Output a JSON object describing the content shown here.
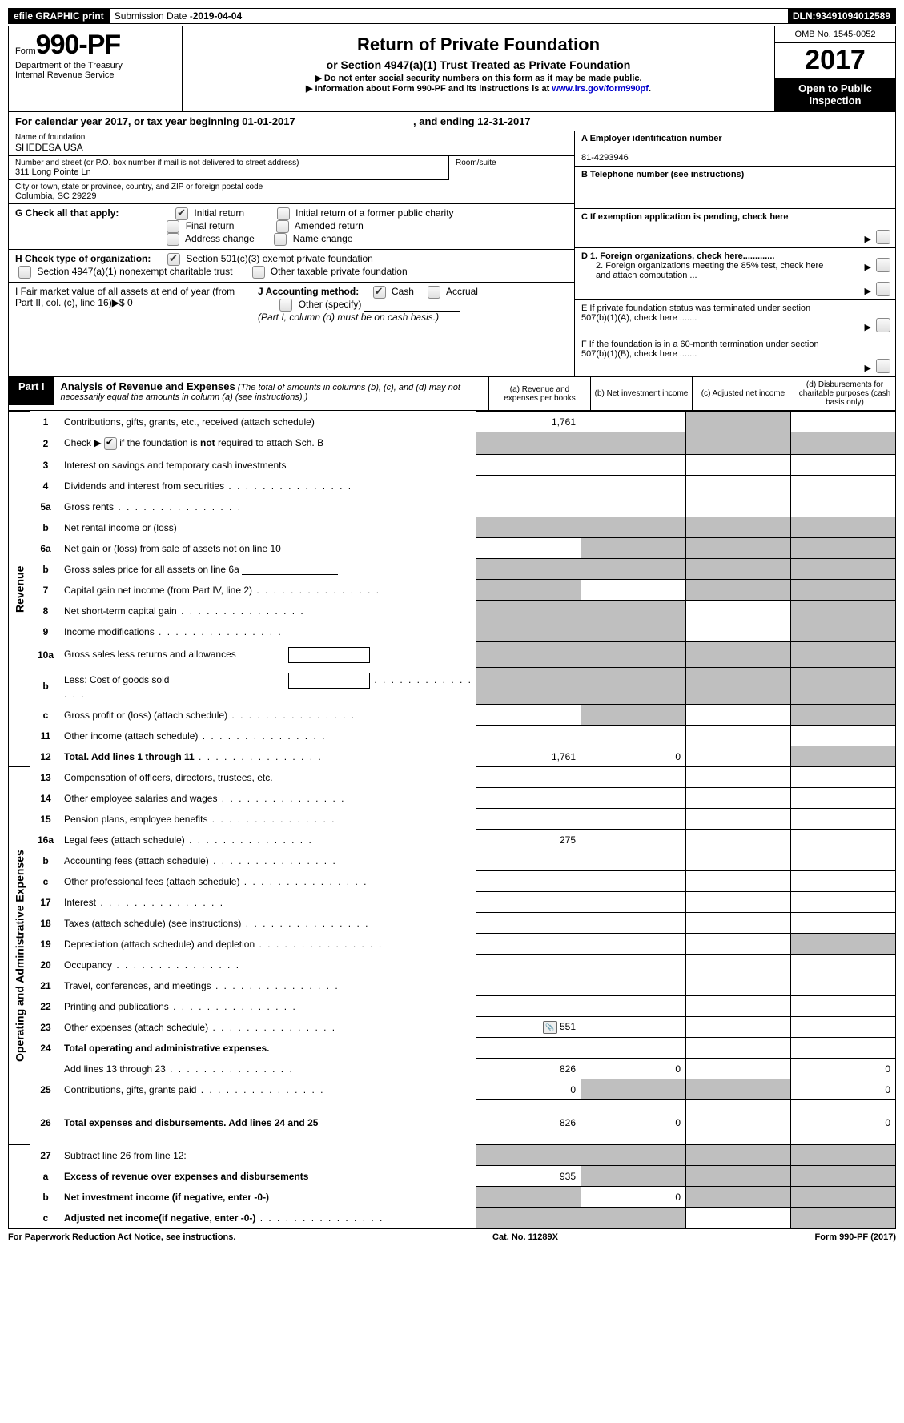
{
  "topbar": {
    "efile": "efile GRAPHIC print",
    "submission_label": "Submission Date - ",
    "submission_date": "2019-04-04",
    "dln_label": "DLN: ",
    "dln": "93491094012589"
  },
  "header": {
    "form_prefix": "Form",
    "form_number": "990-PF",
    "dept1": "Department of the Treasury",
    "dept2": "Internal Revenue Service",
    "title": "Return of Private Foundation",
    "subtitle": "or Section 4947(a)(1) Trust Treated as Private Foundation",
    "note1": "▶ Do not enter social security numbers on this form as it may be made public.",
    "note2_pre": "▶ Information about Form 990-PF and its instructions is at ",
    "note2_link": "www.irs.gov/form990pf",
    "omb": "OMB No. 1545-0052",
    "year": "2017",
    "open": "Open to Public Inspection"
  },
  "calendar": {
    "text_pre": "For calendar year 2017, or tax year beginning ",
    "begin": "01-01-2017",
    "mid": " , and ending ",
    "end": "12-31-2017"
  },
  "entity": {
    "name_lbl": "Name of foundation",
    "name": "SHEDESA USA",
    "addr_lbl": "Number and street (or P.O. box number if mail is not delivered to street address)",
    "addr": "311 Long Pointe Ln",
    "room_lbl": "Room/suite",
    "city_lbl": "City or town, state or province, country, and ZIP or foreign postal code",
    "city": "Columbia, SC  29229"
  },
  "sideA": {
    "lbl": "A Employer identification number",
    "val": "81-4293946"
  },
  "sideB": {
    "lbl": "B Telephone number (see instructions)"
  },
  "sideC": "C  If exemption application is pending, check here",
  "sideD1": "D 1. Foreign organizations, check here.............",
  "sideD2": "2. Foreign organizations meeting the 85% test, check here and attach computation ...",
  "sideE": "E  If private foundation status was terminated under section 507(b)(1)(A), check here .......",
  "sideF": "F  If the foundation is in a 60-month termination under section 507(b)(1)(B), check here .......",
  "checkG": {
    "lbl": "G Check all that apply:",
    "opts": [
      "Initial return",
      "Initial return of a former public charity",
      "Final return",
      "Amended return",
      "Address change",
      "Name change"
    ]
  },
  "checkH": {
    "lbl": "H Check type of organization:",
    "opt1": "Section 501(c)(3) exempt private foundation",
    "opt2": "Section 4947(a)(1) nonexempt charitable trust",
    "opt3": "Other taxable private foundation"
  },
  "rowI": {
    "lbl": "I Fair market value of all assets at end of year (from Part II, col. (c), line 16)▶$",
    "val": "  0"
  },
  "rowJ": {
    "lbl": "J Accounting method:",
    "cash": "Cash",
    "accrual": "Accrual",
    "other": "Other (specify)",
    "note": "(Part I, column (d) must be on cash basis.)"
  },
  "part1": {
    "label": "Part I",
    "title": "Analysis of Revenue and Expenses",
    "note": " (The total of amounts in columns (b), (c), and (d) may not necessarily equal the amounts in column (a) (see instructions).)",
    "cols": {
      "a": "(a)    Revenue and expenses per books",
      "b": "(b)    Net investment income",
      "c": "(c)    Adjusted net income",
      "d": "(d)    Disbursements for charitable purposes (cash basis only)"
    }
  },
  "side_labels": {
    "rev": "Revenue",
    "exp": "Operating and Administrative Expenses"
  },
  "rows": [
    {
      "n": "1",
      "d": "Contributions, gifts, grants, etc., received (attach schedule)",
      "a": "1,761",
      "shade": [
        "c"
      ]
    },
    {
      "n": "2",
      "d": "Check ▶ ☑ if the foundation is not required to attach Sch. B",
      "shade": [
        "a",
        "b",
        "c",
        "d"
      ],
      "bold_check": true,
      "allshade": true
    },
    {
      "n": "3",
      "d": "Interest on savings and temporary cash investments"
    },
    {
      "n": "4",
      "d": "Dividends and interest from securities",
      "dots": true
    },
    {
      "n": "5a",
      "d": "Gross rents",
      "dots": true
    },
    {
      "n": "b",
      "d": "Net rental income or (loss)",
      "shade": [
        "a",
        "b",
        "c",
        "d"
      ],
      "underline": true,
      "allshade": true
    },
    {
      "n": "6a",
      "d": "Net gain or (loss) from sale of assets not on line 10",
      "shade": [
        "b",
        "c",
        "d"
      ]
    },
    {
      "n": "b",
      "d": "Gross sales price for all assets on line 6a",
      "shade": [
        "a",
        "b",
        "c",
        "d"
      ],
      "underline": true,
      "allshade": true
    },
    {
      "n": "7",
      "d": "Capital gain net income (from Part IV, line 2)",
      "dots": true,
      "shade": [
        "a",
        "c",
        "d"
      ]
    },
    {
      "n": "8",
      "d": "Net short-term capital gain",
      "dots": true,
      "shade": [
        "a",
        "b",
        "d"
      ]
    },
    {
      "n": "9",
      "d": "Income modifications",
      "dots": true,
      "shade": [
        "a",
        "b",
        "d"
      ]
    },
    {
      "n": "10a",
      "d": "Gross sales less returns and allowances",
      "shade": [
        "a",
        "b",
        "c",
        "d"
      ],
      "field": true,
      "allshade": true
    },
    {
      "n": "b",
      "d": "Less: Cost of goods sold",
      "dots": true,
      "shade": [
        "a",
        "b",
        "c",
        "d"
      ],
      "field": true,
      "allshade": true
    },
    {
      "n": "c",
      "d": "Gross profit or (loss) (attach schedule)",
      "dots": true,
      "shade": [
        "b",
        "d"
      ]
    },
    {
      "n": "11",
      "d": "Other income (attach schedule)",
      "dots": true
    },
    {
      "n": "12",
      "d": "Total. Add lines 1 through 11",
      "dots": true,
      "bold": true,
      "a": "1,761",
      "b": "0",
      "shade": [
        "d"
      ]
    }
  ],
  "exp_rows": [
    {
      "n": "13",
      "d": "Compensation of officers, directors, trustees, etc."
    },
    {
      "n": "14",
      "d": "Other employee salaries and wages",
      "dots": true
    },
    {
      "n": "15",
      "d": "Pension plans, employee benefits",
      "dots": true
    },
    {
      "n": "16a",
      "d": "Legal fees (attach schedule)",
      "dots": true,
      "a": "275"
    },
    {
      "n": "b",
      "d": "Accounting fees (attach schedule)",
      "dots": true
    },
    {
      "n": "c",
      "d": "Other professional fees (attach schedule)",
      "dots": true
    },
    {
      "n": "17",
      "d": "Interest",
      "dots": true
    },
    {
      "n": "18",
      "d": "Taxes (attach schedule) (see instructions)",
      "dots": true
    },
    {
      "n": "19",
      "d": "Depreciation (attach schedule) and depletion",
      "dots": true,
      "shade": [
        "d"
      ]
    },
    {
      "n": "20",
      "d": "Occupancy",
      "dots": true
    },
    {
      "n": "21",
      "d": "Travel, conferences, and meetings",
      "dots": true
    },
    {
      "n": "22",
      "d": "Printing and publications",
      "dots": true
    },
    {
      "n": "23",
      "d": "Other expenses (attach schedule)",
      "dots": true,
      "a": "551",
      "icon": true
    },
    {
      "n": "24",
      "d": "Total operating and administrative expenses.",
      "bold": true,
      "noval": true
    },
    {
      "n": "",
      "d": "Add lines 13 through 23",
      "dots": true,
      "a": "826",
      "b": "0",
      "d_val": "0"
    },
    {
      "n": "25",
      "d": "Contributions, gifts, grants paid",
      "dots": true,
      "a": "0",
      "shade": [
        "b",
        "c"
      ],
      "d_val": "0"
    },
    {
      "n": "26",
      "d": "Total expenses and disbursements. Add lines 24 and 25",
      "bold": true,
      "tall": true,
      "a": "826",
      "b": "0",
      "d_val": "0"
    }
  ],
  "bottom_rows": [
    {
      "n": "27",
      "d": "Subtract line 26 from line 12:",
      "shade": [
        "a",
        "b",
        "c",
        "d"
      ],
      "allshade": true
    },
    {
      "n": "a",
      "d": "Excess of revenue over expenses and disbursements",
      "bold": true,
      "a": "935",
      "shade": [
        "b",
        "c",
        "d"
      ]
    },
    {
      "n": "b",
      "d": "Net investment income (if negative, enter -0-)",
      "bold": true,
      "shade": [
        "a",
        "c",
        "d"
      ],
      "b": "0"
    },
    {
      "n": "c",
      "d": "Adjusted net income(if negative, enter -0-)",
      "bold": true,
      "dots": true,
      "shade": [
        "a",
        "b",
        "d"
      ]
    }
  ],
  "footer": {
    "left": "For Paperwork Reduction Act Notice, see instructions.",
    "mid": "Cat. No. 11289X",
    "right_pre": "Form ",
    "right_bold": "990-PF",
    "right_post": " (2017)"
  }
}
